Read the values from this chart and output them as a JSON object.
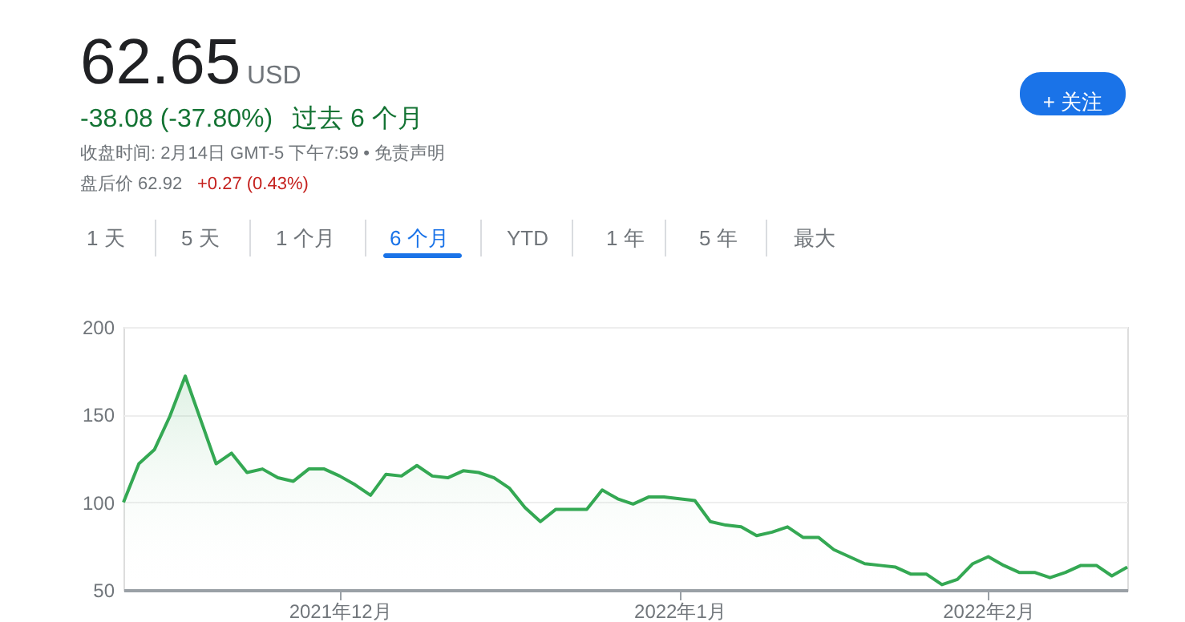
{
  "chart_data": {
    "type": "area",
    "title": "62.65",
    "annotations": [
      "USD",
      "-38.08 (-37.80%)",
      "过去 6 个月",
      "收盘时间: 2月14日 GMT-5 下午7:59 • 免责声明",
      "盘后价 62.92",
      "+0.27 (0.43%)",
      "+ 关注",
      "1 天",
      "5 天",
      "1 个月",
      "6 个月",
      "YTD",
      "1 年",
      "5 年",
      "最大"
    ],
    "categories": [
      null,
      null,
      null,
      null,
      null,
      null,
      null,
      null,
      null,
      null,
      null,
      null,
      null,
      null,
      "2021年12月",
      null,
      null,
      null,
      null,
      null,
      null,
      null,
      null,
      null,
      null,
      null,
      null,
      null,
      null,
      null,
      null,
      null,
      null,
      null,
      null,
      null,
      "2022年1月",
      null,
      null,
      null,
      null,
      null,
      null,
      null,
      null,
      null,
      null,
      null,
      null,
      null,
      null,
      null,
      null,
      null,
      null,
      null,
      "2022年2月",
      null,
      null,
      null,
      null,
      null,
      null,
      null,
      null,
      null
    ],
    "series": [
      {
        "color": "#34a853",
        "values": [
          100,
          122,
          130,
          149,
          172,
          147,
          122,
          128,
          117,
          119,
          114,
          112,
          119,
          119,
          115,
          110,
          104,
          116,
          115,
          121,
          115,
          114,
          118,
          117,
          114,
          108,
          97,
          89,
          96,
          96,
          96,
          107,
          102,
          99,
          103,
          103,
          102,
          101,
          89,
          87,
          86,
          81,
          83,
          86,
          80,
          80,
          73,
          69,
          65,
          64,
          63,
          59,
          59,
          53,
          56,
          65,
          69,
          64,
          60,
          60,
          57,
          60,
          64,
          64,
          58,
          63
        ]
      }
    ],
    "ylim": [
      50,
      200
    ],
    "yticks": [
      50,
      100,
      150,
      200
    ],
    "grid": "y",
    "marker": "none",
    "line_style": "solid"
  }
}
